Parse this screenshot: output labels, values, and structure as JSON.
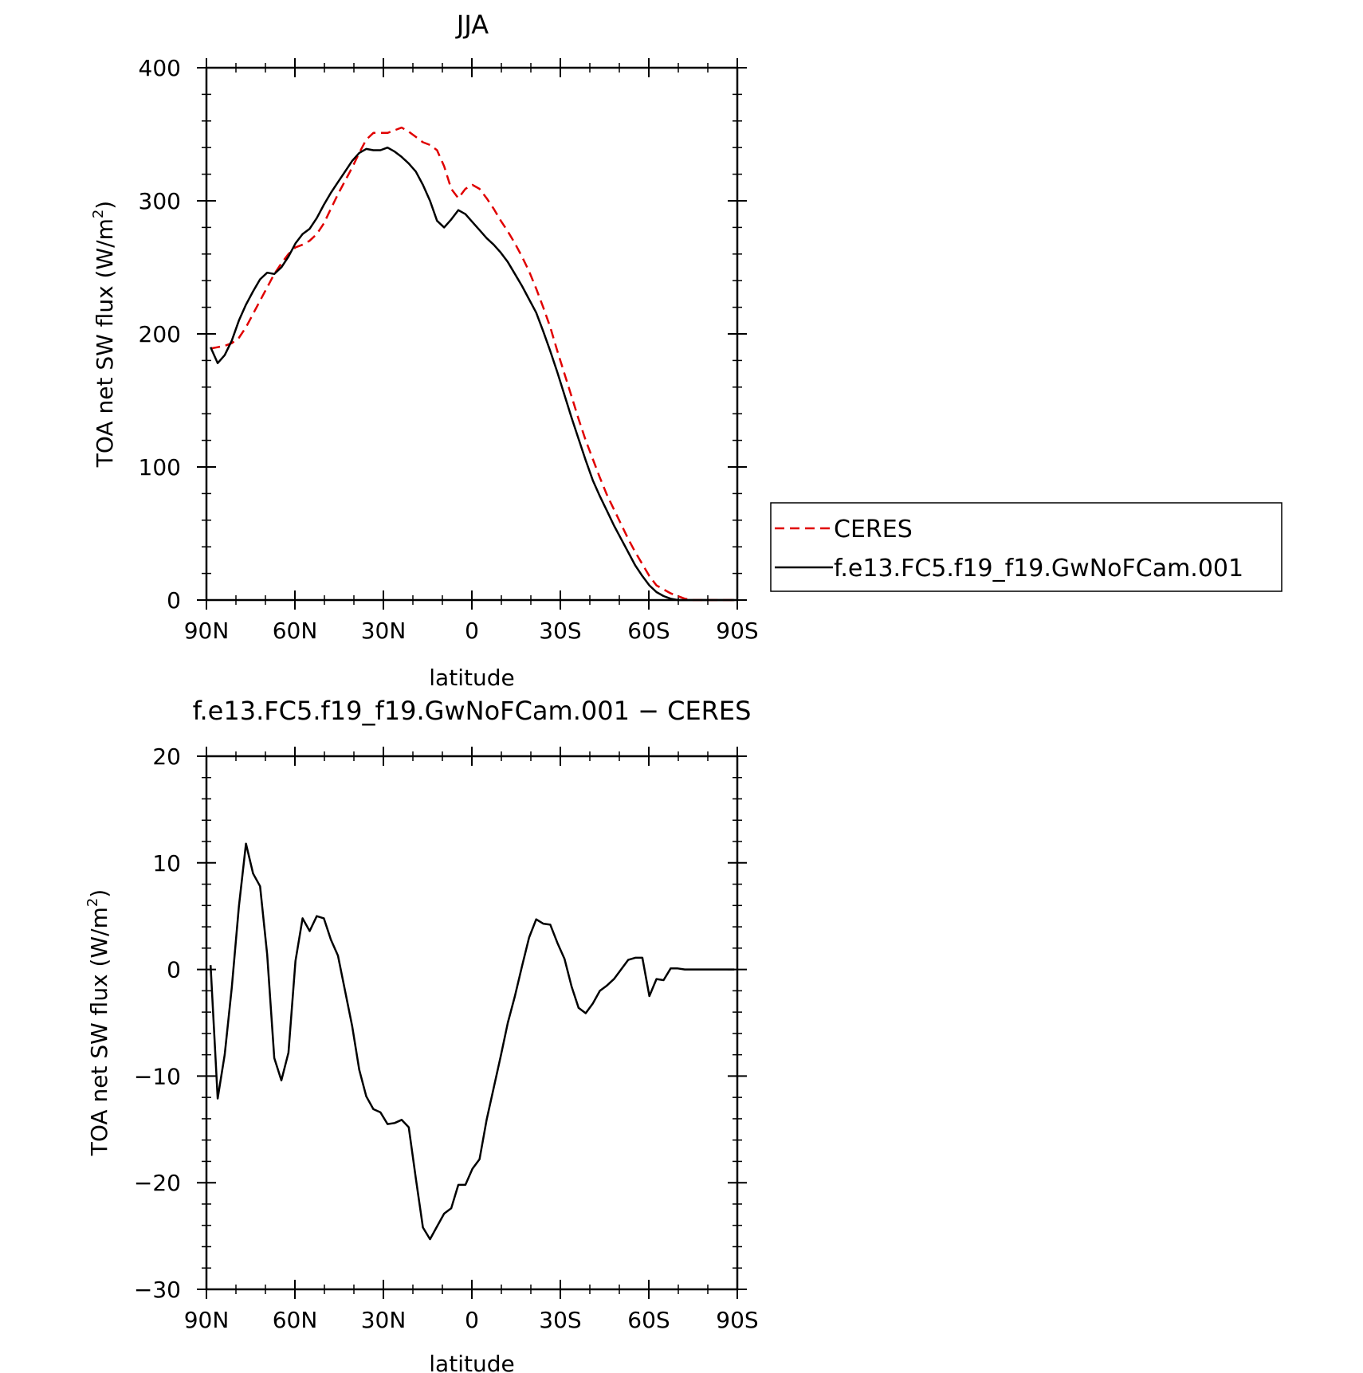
{
  "chart_data": [
    {
      "type": "line",
      "title": "JJA",
      "xlabel": "latitude",
      "ylabel": "TOA net SW flux (W/m²)",
      "ylabel_parts": [
        "TOA net SW flux (W/m",
        "2",
        ")"
      ],
      "xticks": [
        90,
        60,
        30,
        0,
        -30,
        -60,
        -90
      ],
      "xtick_labels": [
        "90N",
        "60N",
        "30N",
        "0",
        "30S",
        "60S",
        "90S"
      ],
      "xlim": [
        90,
        -90
      ],
      "yticks": [
        0,
        100,
        200,
        300,
        400
      ],
      "ytick_labels": [
        "0",
        "100",
        "200",
        "300",
        "400"
      ],
      "ylim": [
        0,
        400
      ],
      "grid": false,
      "legend_position": "right",
      "series": [
        {
          "name": "CERES",
          "color": "#e00000",
          "style": "dashed",
          "x": [
            88.6,
            86.2,
            83.8,
            81.4,
            79,
            76.6,
            74.2,
            71.8,
            69.4,
            67,
            64.6,
            62.2,
            59.8,
            57.4,
            55,
            52.6,
            50.2,
            47.8,
            45.4,
            43,
            40.6,
            38.2,
            35.8,
            33.4,
            31,
            28.6,
            26.2,
            23.8,
            21.4,
            19,
            16.6,
            14.2,
            11.8,
            9.4,
            7,
            4.6,
            2.2,
            -0.2,
            -2.6,
            -5,
            -7.4,
            -9.8,
            -12.2,
            -14.6,
            -17,
            -19.4,
            -21.8,
            -24.2,
            -26.6,
            -29,
            -31.4,
            -33.8,
            -36.2,
            -38.6,
            -41,
            -43.4,
            -45.8,
            -48.2,
            -50.6,
            -53,
            -55.4,
            -57.8,
            -60.2,
            -62.6,
            -65,
            -67.4,
            -69.8,
            -72.2,
            -74.6,
            -77,
            -79.4,
            -81.8,
            -84.2,
            -86.6,
            -89
          ],
          "values": [
            189,
            190,
            191,
            193,
            197,
            205,
            215,
            225,
            235,
            245,
            253,
            260,
            265,
            267,
            270,
            275,
            283,
            294,
            305,
            315,
            325,
            336,
            346,
            351,
            351,
            351,
            353,
            355,
            352,
            348,
            344,
            342,
            338,
            326,
            309,
            302,
            309,
            312,
            309,
            302,
            294,
            285,
            277,
            268,
            258,
            247,
            234,
            220,
            205,
            187,
            170,
            153,
            136,
            120,
            106,
            92,
            79,
            68,
            57,
            46,
            36,
            27,
            18,
            11,
            8,
            5,
            3,
            1,
            0,
            0,
            0,
            0,
            0,
            0,
            0
          ]
        },
        {
          "name": "f.e13.FC5.f19_f19.GwNoFCam.001",
          "color": "#000000",
          "style": "solid",
          "x": [
            88.6,
            86.2,
            83.8,
            81.4,
            79,
            76.6,
            74.2,
            71.8,
            69.4,
            67,
            64.6,
            62.2,
            59.8,
            57.4,
            55,
            52.6,
            50.2,
            47.8,
            45.4,
            43,
            40.6,
            38.2,
            35.8,
            33.4,
            31,
            28.6,
            26.2,
            23.8,
            21.4,
            19,
            16.6,
            14.2,
            11.8,
            9.4,
            7,
            4.6,
            2.2,
            -0.2,
            -2.6,
            -5,
            -7.4,
            -9.8,
            -12.2,
            -14.6,
            -17,
            -19.4,
            -21.8,
            -24.2,
            -26.6,
            -29,
            -31.4,
            -33.8,
            -36.2,
            -38.6,
            -41,
            -43.4,
            -45.8,
            -48.2,
            -50.6,
            -53,
            -55.4,
            -57.8,
            -60.2,
            -62.6,
            -65,
            -67.4,
            -69.8,
            -72.2,
            -74.6,
            -77,
            -79.4,
            -81.8,
            -84.2,
            -86.6,
            -89
          ],
          "values": [
            190,
            178,
            184,
            195,
            210,
            222,
            232,
            241,
            246,
            245,
            250,
            258,
            268,
            275,
            279,
            287,
            297,
            306,
            314,
            322,
            330,
            336,
            339,
            338,
            338,
            340,
            337,
            333,
            328,
            322,
            312,
            300,
            285,
            280,
            286,
            293,
            290,
            284,
            278,
            272,
            267,
            261,
            254,
            245,
            236,
            226,
            216,
            202,
            187,
            171,
            154,
            137,
            121,
            105,
            90,
            78,
            67,
            56,
            46,
            36,
            26,
            18,
            11,
            6,
            3,
            1,
            0,
            0,
            0,
            0,
            0,
            0,
            0,
            0,
            0
          ]
        }
      ]
    },
    {
      "type": "line",
      "title": "f.e13.FC5.f19_f19.GwNoFCam.001 − CERES",
      "xlabel": "latitude",
      "ylabel": "TOA net SW flux (W/m²)",
      "ylabel_parts": [
        "TOA net SW flux (W/m",
        "2",
        ")"
      ],
      "xticks": [
        90,
        60,
        30,
        0,
        -30,
        -60,
        -90
      ],
      "xtick_labels": [
        "90N",
        "60N",
        "30N",
        "0",
        "30S",
        "60S",
        "90S"
      ],
      "xlim": [
        90,
        -90
      ],
      "yticks": [
        20,
        10,
        0,
        -10,
        -20,
        -30
      ],
      "ytick_labels": [
        "20",
        "10",
        "0",
        "−10",
        "−20",
        "−30"
      ],
      "ylim": [
        -30,
        20
      ],
      "grid": false,
      "series": [
        {
          "color": "#000000",
          "style": "solid",
          "x": [
            88.6,
            86.2,
            83.8,
            81.4,
            79,
            76.6,
            74.2,
            71.8,
            69.4,
            67,
            64.6,
            62.2,
            59.8,
            57.4,
            55,
            52.6,
            50.2,
            47.8,
            45.4,
            43,
            40.6,
            38.2,
            35.8,
            33.4,
            31,
            28.6,
            26.2,
            23.8,
            21.4,
            19,
            16.6,
            14.2,
            11.8,
            9.4,
            7,
            4.6,
            2.2,
            -0.2,
            -2.6,
            -5,
            -7.4,
            -9.8,
            -12.2,
            -14.6,
            -17,
            -19.4,
            -21.8,
            -24.2,
            -26.6,
            -29,
            -31.4,
            -33.8,
            -36.2,
            -38.6,
            -41,
            -43.4,
            -45.8,
            -48.2,
            -50.6,
            -53,
            -55.4,
            -57.8,
            -60.2,
            -62.6,
            -65,
            -67.4,
            -69.8,
            -72.2,
            -74.6,
            -77,
            -79.4,
            -81.8,
            -84.2,
            -86.6,
            -89
          ],
          "values": [
            0.4,
            -12.1,
            -8,
            -1.7,
            5.9,
            11.8,
            9,
            7.8,
            1.4,
            -8.3,
            -10.4,
            -7.8,
            0.8,
            4.8,
            3.6,
            5,
            4.8,
            2.8,
            1.3,
            -2,
            -5.3,
            -9.4,
            -11.9,
            -13.1,
            -13.4,
            -14.5,
            -14.4,
            -14.1,
            -14.8,
            -19.6,
            -24.2,
            -25.3,
            -24.1,
            -22.9,
            -22.4,
            -20.2,
            -20.2,
            -18.7,
            -17.8,
            -14.1,
            -11.1,
            -8.1,
            -5,
            -2.5,
            0.3,
            3,
            4.7,
            4.3,
            4.2,
            2.5,
            1,
            -1.6,
            -3.6,
            -4.1,
            -3.2,
            -2,
            -1.5,
            -0.9,
            0,
            0.9,
            1.1,
            1.1,
            -2.5,
            -0.9,
            -1,
            0.1,
            0.1,
            0,
            0,
            0,
            0,
            0,
            0,
            0,
            0
          ]
        }
      ]
    }
  ]
}
